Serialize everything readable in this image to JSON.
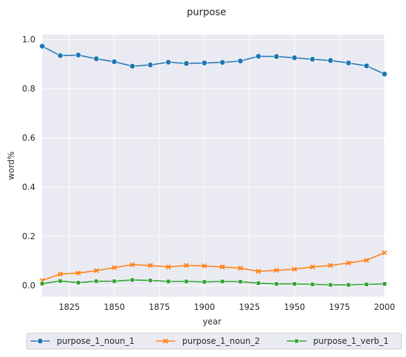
{
  "chart_data": {
    "type": "line",
    "title": "purpose",
    "xlabel": "year",
    "ylabel": "word%",
    "xlim": [
      1810,
      2000
    ],
    "ylim": [
      -0.045,
      1.02
    ],
    "xticks": [
      1825,
      1850,
      1875,
      1900,
      1925,
      1950,
      1975,
      2000
    ],
    "yticks": [
      0.0,
      0.2,
      0.4,
      0.6,
      0.8,
      1.0
    ],
    "ytick_labels": [
      "0.0",
      "0.2",
      "0.4",
      "0.6",
      "0.8",
      "1.0"
    ],
    "grid": true,
    "legend_position": "bottom-center",
    "x": [
      1810,
      1820,
      1830,
      1840,
      1850,
      1860,
      1870,
      1880,
      1890,
      1900,
      1910,
      1920,
      1930,
      1940,
      1950,
      1960,
      1970,
      1980,
      1990,
      2000
    ],
    "series": [
      {
        "name": "purpose_1_noun_1",
        "color": "#1f77b4",
        "marker": "circle",
        "values": [
          0.973,
          0.935,
          0.937,
          0.922,
          0.91,
          0.892,
          0.897,
          0.908,
          0.903,
          0.905,
          0.907,
          0.913,
          0.932,
          0.931,
          0.926,
          0.92,
          0.915,
          0.905,
          0.893,
          0.86
        ]
      },
      {
        "name": "purpose_1_noun_2",
        "color": "#ff7f0e",
        "marker": "x",
        "values": [
          0.021,
          0.047,
          0.051,
          0.061,
          0.073,
          0.085,
          0.082,
          0.076,
          0.082,
          0.08,
          0.076,
          0.071,
          0.058,
          0.062,
          0.067,
          0.076,
          0.082,
          0.092,
          0.103,
          0.134
        ]
      },
      {
        "name": "purpose_1_verb_1",
        "color": "#2ca02c",
        "marker": "square",
        "values": [
          0.008,
          0.019,
          0.012,
          0.018,
          0.018,
          0.023,
          0.021,
          0.017,
          0.017,
          0.015,
          0.017,
          0.016,
          0.01,
          0.007,
          0.007,
          0.005,
          0.003,
          0.003,
          0.005,
          0.007
        ]
      }
    ]
  }
}
